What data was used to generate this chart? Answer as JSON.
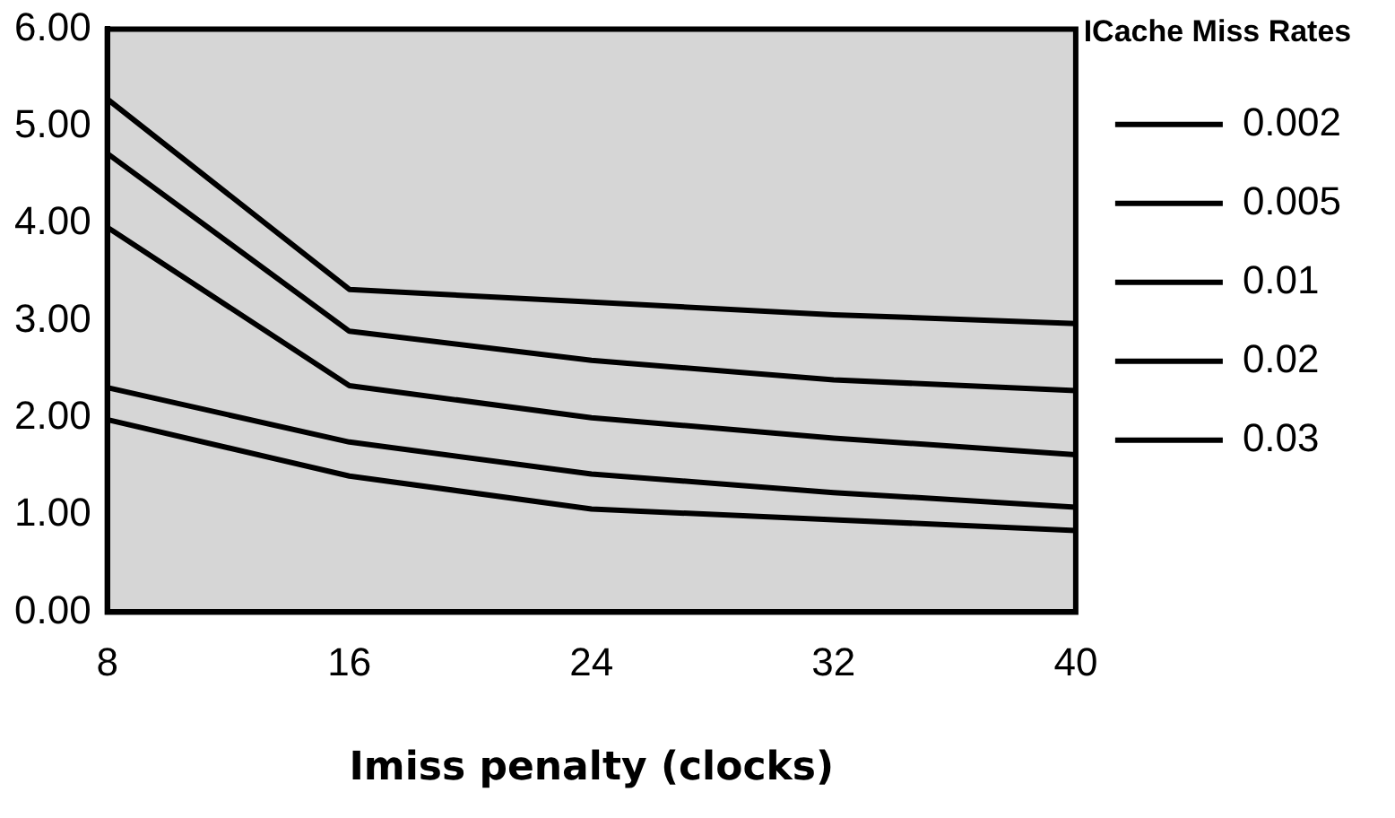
{
  "chart_data": {
    "type": "line",
    "xlabel": "Imiss penalty (clocks)",
    "legend_title": "ICache Miss Rates",
    "legend": "top right",
    "marker": "none",
    "line_style": "solid",
    "grid": false,
    "x": [
      8,
      16,
      24,
      32,
      40
    ],
    "xlim": [
      8,
      40
    ],
    "xticks": [
      8,
      16,
      24,
      32,
      40
    ],
    "ylim": [
      0,
      6
    ],
    "yticks": [
      {
        "value": 0,
        "label": "0.00"
      },
      {
        "value": 1,
        "label": "1.00"
      },
      {
        "value": 2,
        "label": "2.00"
      },
      {
        "value": 3,
        "label": "3.00"
      },
      {
        "value": 4,
        "label": "4.00"
      },
      {
        "value": 5,
        "label": "5.00"
      },
      {
        "value": 6,
        "label": "6.00"
      }
    ],
    "series": [
      {
        "name": "0.002",
        "color": "#000000",
        "values": [
          1.98,
          1.4,
          1.06,
          0.95,
          0.84
        ]
      },
      {
        "name": "0.005",
        "color": "#000000",
        "values": [
          2.31,
          1.75,
          1.42,
          1.23,
          1.08
        ]
      },
      {
        "name": "0.01",
        "color": "#000000",
        "values": [
          3.96,
          2.33,
          2.0,
          1.79,
          1.62
        ]
      },
      {
        "name": "0.02",
        "color": "#000000",
        "values": [
          4.72,
          2.89,
          2.59,
          2.39,
          2.28
        ]
      },
      {
        "name": "0.03",
        "color": "#000000",
        "values": [
          5.28,
          3.32,
          3.19,
          3.06,
          2.97
        ]
      }
    ]
  }
}
